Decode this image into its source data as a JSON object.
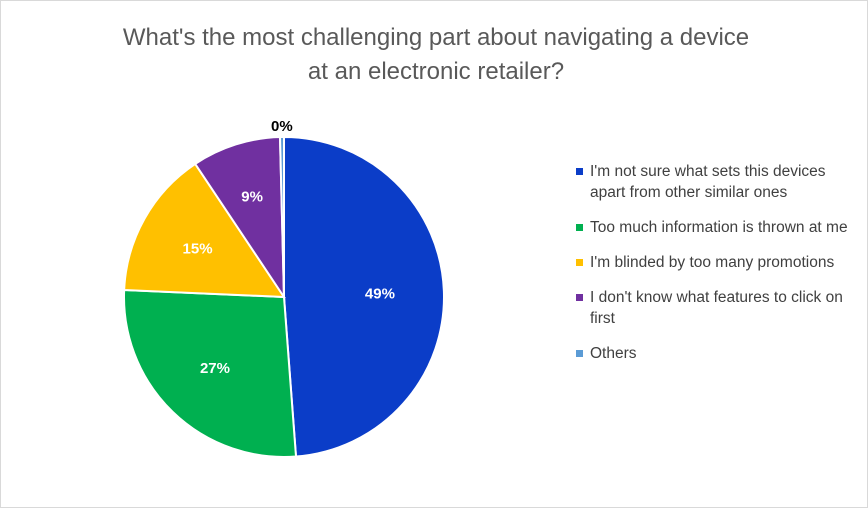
{
  "chart_data": {
    "type": "pie",
    "title": "What's the most challenging part about navigating a device at an electronic retailer?",
    "title_lines": [
      "What's the most challenging part about navigating a device",
      "at an electronic retailer?"
    ],
    "slices": [
      {
        "label": "I'm not sure what sets this devices apart from other similar ones",
        "value": 49,
        "display": "49%",
        "color": "#0b3dc8",
        "label_color": "#ffffff"
      },
      {
        "label": "Too much information is thrown at me",
        "value": 27,
        "display": "27%",
        "color": "#00b050",
        "label_color": "#ffffff"
      },
      {
        "label": "I'm blinded by too many promotions",
        "value": 15,
        "display": "15%",
        "color": "#ffc000",
        "label_color": "#ffffff"
      },
      {
        "label": "I don't know what features to click on first",
        "value": 9,
        "display": "9%",
        "color": "#7030a0",
        "label_color": "#ffffff"
      },
      {
        "label": "Others",
        "value": 0.4,
        "display": "0%",
        "color": "#5b9bd5",
        "label_color": "#000000"
      }
    ],
    "legend_position": "right"
  }
}
